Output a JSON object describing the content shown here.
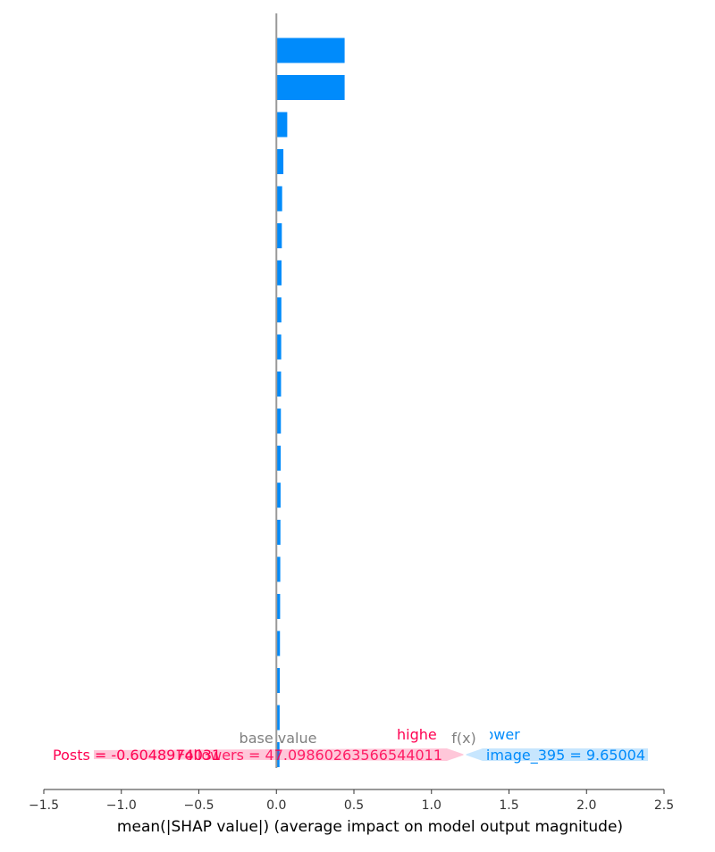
{
  "chart_data": {
    "type": "bar",
    "orientation": "horizontal",
    "xlabel": "mean(|SHAP value|) (average impact on model output magnitude)",
    "xlim": [
      -1.5,
      2.5
    ],
    "xticks": [
      -1.5,
      -1.0,
      -0.5,
      0.0,
      0.5,
      1.0,
      1.5,
      2.0,
      2.5
    ],
    "xtick_labels": [
      "−1.5",
      "−1.0",
      "−0.5",
      "0.0",
      "0.5",
      "1.0",
      "1.5",
      "2.0",
      "2.5"
    ],
    "grid": false,
    "bar_color": "#008bfb",
    "values": [
      0.44,
      0.44,
      0.07,
      0.045,
      0.037,
      0.035,
      0.033,
      0.032,
      0.031,
      0.03,
      0.029,
      0.028,
      0.027,
      0.026,
      0.025,
      0.024,
      0.023,
      0.022,
      0.021,
      0.02
    ],
    "force_plot_overlay": {
      "higher_label": "higher",
      "lower_label": "lower",
      "fx_label": "f(x)",
      "base_value_label": "base value",
      "higher_color": "#ff0051",
      "lower_color": "#008bfb",
      "neutral_color": "#808080",
      "left_feature_text": "Posts = -0.6048974031",
      "overlap_feature_text": "Followers = 47.09860263566544011",
      "right_feature_text": "image_395 = 9.65004"
    }
  }
}
